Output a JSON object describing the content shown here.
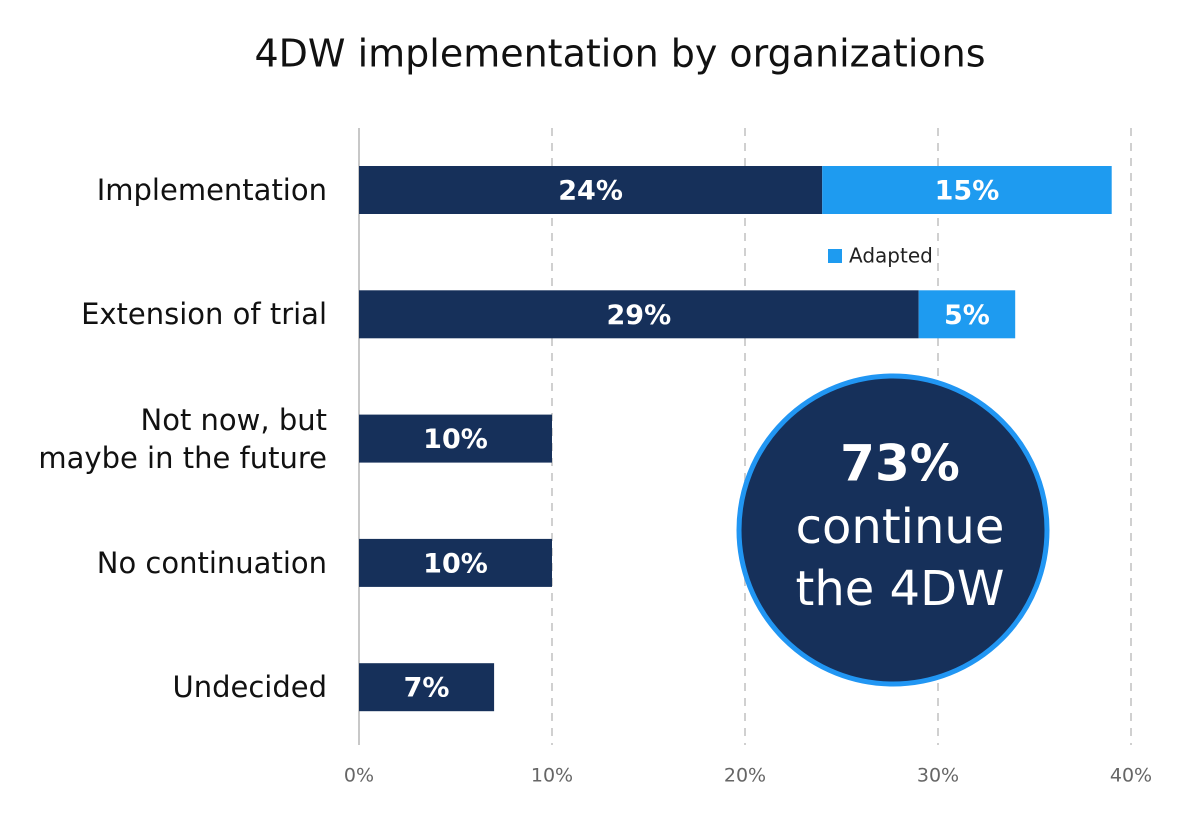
{
  "chart_data": {
    "type": "stacked-bar-horizontal",
    "title": "4DW implementation by organizations",
    "categories": [
      "Implementation",
      "Extension of trial",
      "Not now, but\nmaybe in the future",
      "No continuation",
      "Undecided"
    ],
    "series": [
      {
        "color": "#16305a",
        "values": [
          24,
          29,
          10,
          10,
          7
        ],
        "value_labels": [
          "24%",
          "29%",
          "10%",
          "10%",
          "7%"
        ]
      },
      {
        "name": "Adapted",
        "color": "#1e9bf0",
        "values": [
          15,
          5,
          null,
          null,
          null
        ],
        "value_labels": [
          "15%",
          "5%",
          null,
          null,
          null
        ]
      }
    ],
    "xlim": [
      0,
      40
    ],
    "xticks": [
      {
        "value": 0,
        "label": "0%"
      },
      {
        "value": 10,
        "label": "10%"
      },
      {
        "value": 20,
        "label": "20%"
      },
      {
        "value": 30,
        "label": "30%"
      },
      {
        "value": 40,
        "label": "40%"
      }
    ],
    "grid": true,
    "annotation": {
      "headline": "73%",
      "lines": [
        "continue",
        "the 4DW"
      ]
    }
  }
}
